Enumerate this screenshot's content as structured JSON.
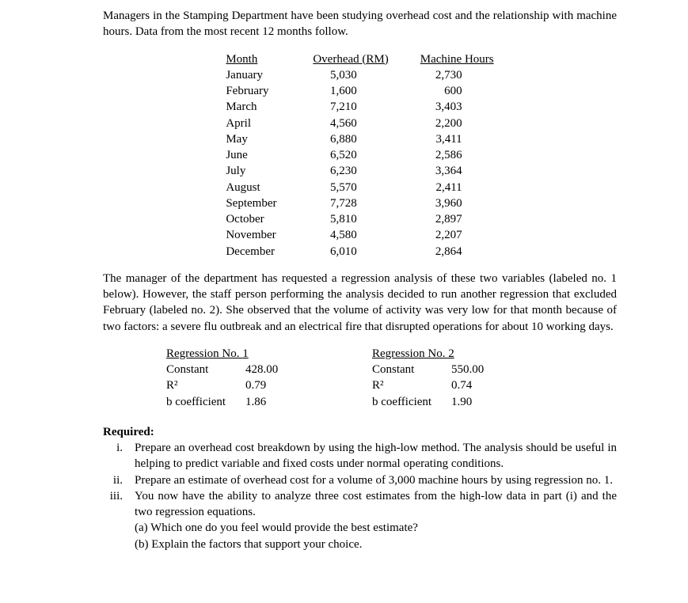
{
  "intro": "Managers in the Stamping Department have been studying overhead cost and the relationship with machine hours.  Data from the most recent 12 months follow.",
  "table": {
    "headers": {
      "month": "Month",
      "overhead": "Overhead (RM)",
      "hours": "Machine Hours"
    },
    "rows": [
      {
        "month": "January",
        "overhead": "5,030",
        "hours": "2,730"
      },
      {
        "month": "February",
        "overhead": "1,600",
        "hours": "600"
      },
      {
        "month": "March",
        "overhead": "7,210",
        "hours": "3,403"
      },
      {
        "month": "April",
        "overhead": "4,560",
        "hours": "2,200"
      },
      {
        "month": "May",
        "overhead": "6,880",
        "hours": "3,411"
      },
      {
        "month": "June",
        "overhead": "6,520",
        "hours": "2,586"
      },
      {
        "month": "July",
        "overhead": "6,230",
        "hours": "3,364"
      },
      {
        "month": "August",
        "overhead": "5,570",
        "hours": "2,411"
      },
      {
        "month": "September",
        "overhead": "7,728",
        "hours": "3,960"
      },
      {
        "month": "October",
        "overhead": "5,810",
        "hours": "2,897"
      },
      {
        "month": "November",
        "overhead": "4,580",
        "hours": "2,207"
      },
      {
        "month": "December",
        "overhead": "6,010",
        "hours": "2,864"
      }
    ]
  },
  "paragraph2": "The manager of the department has requested a regression analysis of these two variables (labeled no. 1 below).  However, the staff person performing the analysis decided to run another regression that excluded February (labeled no. 2).  She observed that the volume of activity was very low for that month because of two factors: a severe flu outbreak and an electrical fire that disrupted operations for about 10 working days.",
  "reg1": {
    "title": "Regression No. 1",
    "constant_label": "Constant",
    "constant_value": "428.00",
    "r2_label": "R²",
    "r2_value": "0.79",
    "b_label": "b coefficient",
    "b_value": "1.86"
  },
  "reg2": {
    "title": "Regression No. 2",
    "constant_label": "Constant",
    "constant_value": "550.00",
    "r2_label": "R²",
    "r2_value": "0.74",
    "b_label": "b coefficient",
    "b_value": "1.90"
  },
  "required_label": "Required:",
  "req": {
    "i_marker": "i.",
    "i_text": "Prepare an overhead cost breakdown by using the high-low method.  The analysis should be useful in helping to predict variable and fixed costs under normal operating conditions.",
    "ii_marker": "ii.",
    "ii_text": "Prepare an estimate of overhead cost for a volume of 3,000 machine hours by using regression no. 1.",
    "iii_marker": "iii.",
    "iii_text": "You now have the ability to analyze three cost estimates from the high-low data in part (i) and the two regression equations.",
    "iii_a": "(a) Which one do you feel would provide the best estimate?",
    "iii_b": "(b) Explain the factors that support your choice."
  }
}
